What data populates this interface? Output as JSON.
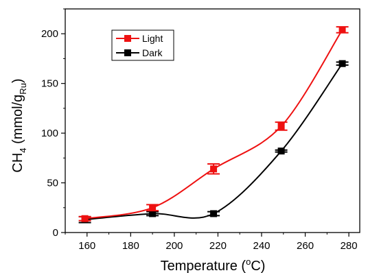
{
  "chart_data": {
    "type": "scatter",
    "xlabel": "Temperature",
    "xlabel_unit_open": " (",
    "xlabel_unit_sup": "o",
    "xlabel_unit_close": "C)",
    "ylabel_main": "CH",
    "ylabel_sub1": "4",
    "ylabel_mid": " (mmol/g",
    "ylabel_sub2": "Ru",
    "ylabel_end": ")",
    "xlim": [
      150,
      285
    ],
    "ylim": [
      0,
      225
    ],
    "xticks": [
      160,
      180,
      200,
      220,
      240,
      260,
      280
    ],
    "yticks": [
      0,
      50,
      100,
      150,
      200
    ],
    "x_minor_step": 10,
    "y_minor_step": 25,
    "legend_position": "top-left",
    "series": [
      {
        "name": "Light",
        "color": "#ee1111",
        "marker": "square",
        "x": [
          159,
          190,
          218,
          249,
          277
        ],
        "y": [
          14,
          25,
          64,
          107,
          204
        ],
        "err": [
          2,
          3,
          5,
          4,
          3
        ]
      },
      {
        "name": "Dark",
        "color": "#000000",
        "marker": "square",
        "x": [
          159,
          190,
          218,
          249,
          277
        ],
        "y": [
          13,
          19,
          19,
          82,
          170
        ],
        "err": [
          3,
          2,
          2,
          1,
          1.5
        ]
      }
    ]
  }
}
